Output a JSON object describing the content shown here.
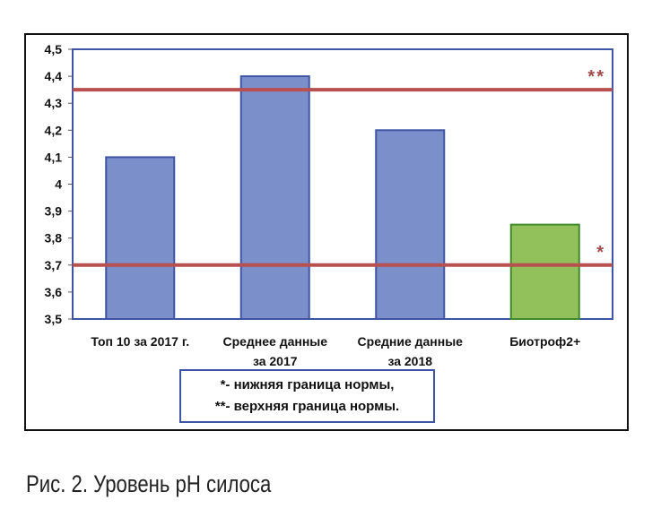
{
  "chart_data": {
    "type": "bar",
    "categories": [
      [
        "Топ 10 за 2017 г."
      ],
      [
        "Среднее данные",
        "за 2017"
      ],
      [
        "Средние данные",
        "за 2018"
      ],
      [
        "Биотроф2+"
      ]
    ],
    "values": [
      4.1,
      4.4,
      4.2,
      3.85
    ],
    "bar_colors": [
      "#7b8fcb",
      "#7b8fcb",
      "#7b8fcb",
      "#92c15c"
    ],
    "bar_border_colors": [
      "#3f55a4",
      "#3f55a4",
      "#3f55a4",
      "#3f8a2c"
    ],
    "ylim": [
      3.5,
      4.5
    ],
    "yticks": [
      "3,5",
      "3,6",
      "3,7",
      "3,8",
      "3,9",
      "4",
      "4,1",
      "4,2",
      "4,3",
      "4,4",
      "4,5"
    ],
    "reference_lines": [
      {
        "value": 4.35,
        "marker": "**",
        "color": "#b85050"
      },
      {
        "value": 3.7,
        "marker": "*",
        "color": "#b85050"
      }
    ],
    "grid": false,
    "title": "",
    "xlabel": "",
    "ylabel": ""
  },
  "legend": {
    "lines": [
      "*- нижняя граница нормы,",
      "**- верхняя граница нормы."
    ]
  },
  "caption": "Рис. 2. Уровень pH силоса"
}
